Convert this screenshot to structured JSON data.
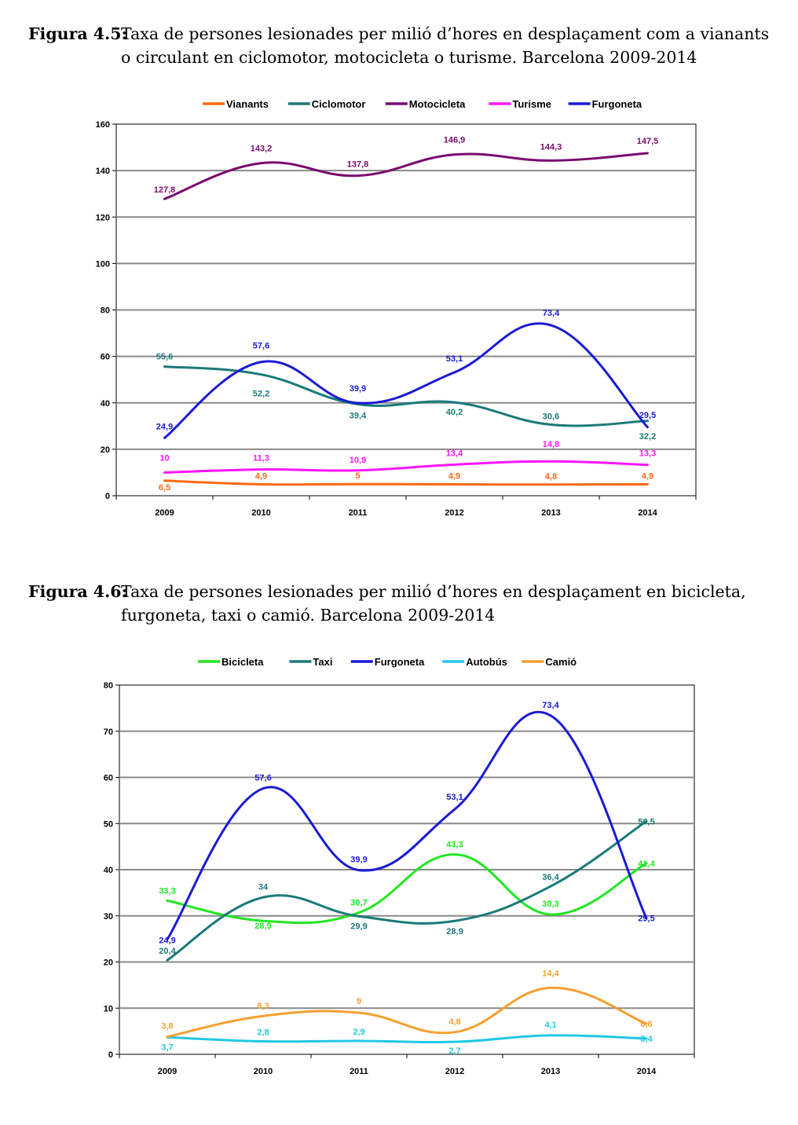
{
  "figure1": {
    "label": "Figura 4.5:",
    "caption": "Taxa de persones lesionades per milió d’hores en desplaçament com a vianants o circulant en ciclomotor, motocicleta o turisme. Barcelona 2009-2014"
  },
  "figure2": {
    "label": "Figura 4.6:",
    "caption": "Taxa de persones lesionades per milió d’hores en desplaçament en bicicleta, furgoneta, taxi o camió. Barcelona 2009-2014"
  },
  "chart_data": [
    {
      "type": "line",
      "title": "Taxa de persones lesionades per milió d’hores en desplaçament com a vianants o circulant en ciclomotor, motocicleta o turisme. Barcelona 2009-2014",
      "categories": [
        "2009",
        "2010",
        "2011",
        "2012",
        "2013",
        "2014"
      ],
      "ylim": [
        0,
        160
      ],
      "yticks": [
        0,
        20,
        40,
        60,
        80,
        100,
        120,
        140,
        160
      ],
      "grid": true,
      "legend_position": "top",
      "series": [
        {
          "name": "Vianants",
          "color": "#ff6a13",
          "values": [
            6.5,
            4.9,
            5,
            4.9,
            4.8,
            4.9
          ],
          "labels": [
            "6,5",
            "4,9",
            "5",
            "4,9",
            "4,8",
            "4,9"
          ]
        },
        {
          "name": "Ciclomotor",
          "color": "#1a7a78",
          "values": [
            55.6,
            52.2,
            39.4,
            40.2,
            30.6,
            32.2
          ],
          "labels": [
            "55,6",
            "52,2",
            "39,4",
            "40,2",
            "30,6",
            "32,2"
          ]
        },
        {
          "name": "Motocicleta",
          "color": "#7a0a6e",
          "values": [
            127.8,
            143.2,
            137.8,
            146.9,
            144.3,
            147.5
          ],
          "labels": [
            "127,8",
            "143,2",
            "137,8",
            "146,9",
            "144,3",
            "147,5"
          ]
        },
        {
          "name": "Turisme",
          "color": "#ff14ff",
          "values": [
            10,
            11.3,
            10.9,
            13.4,
            14.8,
            13.3
          ],
          "labels": [
            "10",
            "11,3",
            "10,9",
            "13,4",
            "14,8",
            "13,3"
          ]
        },
        {
          "name": "Furgoneta",
          "color": "#1a1ad4",
          "values": [
            24.9,
            57.6,
            39.9,
            53.1,
            73.4,
            29.5
          ],
          "labels": [
            "24,9",
            "57,6",
            "39,9",
            "53,1",
            "73,4",
            "29,5"
          ]
        }
      ]
    },
    {
      "type": "line",
      "title": "Taxa de persones lesionades per milió d’hores en desplaçament en bicicleta, furgoneta, taxi o camió. Barcelona 2009-2014",
      "categories": [
        "2009",
        "2010",
        "2011",
        "2012",
        "2013",
        "2014"
      ],
      "ylim": [
        0,
        80
      ],
      "yticks": [
        0,
        10,
        20,
        30,
        40,
        50,
        60,
        70,
        80
      ],
      "grid": true,
      "legend_position": "top",
      "series": [
        {
          "name": "Bicicleta",
          "color": "#22e622",
          "values": [
            33.3,
            28.9,
            30.7,
            43.3,
            30.3,
            41.4
          ],
          "labels": [
            "33,3",
            "28,9",
            "30,7",
            "43,3",
            "30,3",
            "41,4"
          ]
        },
        {
          "name": "Taxi",
          "color": "#1a7a78",
          "values": [
            20.4,
            34,
            29.9,
            28.9,
            36.4,
            50.5
          ],
          "labels": [
            "20,4",
            "34",
            "29,9",
            "28,9",
            "36,4",
            "50,5"
          ]
        },
        {
          "name": "Furgoneta",
          "color": "#1a1ad4",
          "values": [
            24.9,
            57.6,
            39.9,
            53.1,
            73.4,
            29.5
          ],
          "labels": [
            "24,9",
            "57,6",
            "39,9",
            "53,1",
            "73,4",
            "29,5"
          ]
        },
        {
          "name": "Autobús",
          "color": "#22c8e6",
          "values": [
            3.7,
            2.8,
            2.9,
            2.7,
            4.1,
            3.4
          ],
          "labels": [
            "3,7",
            "2,8",
            "2,9",
            "2,7",
            "4,1",
            "3,4"
          ]
        },
        {
          "name": "Camió",
          "color": "#f5a030",
          "values": [
            3.8,
            8.3,
            9,
            4.8,
            14.4,
            6.6
          ],
          "labels": [
            "3,8",
            "8,3",
            "9",
            "4,8",
            "14,4",
            "6,6"
          ]
        }
      ]
    }
  ]
}
